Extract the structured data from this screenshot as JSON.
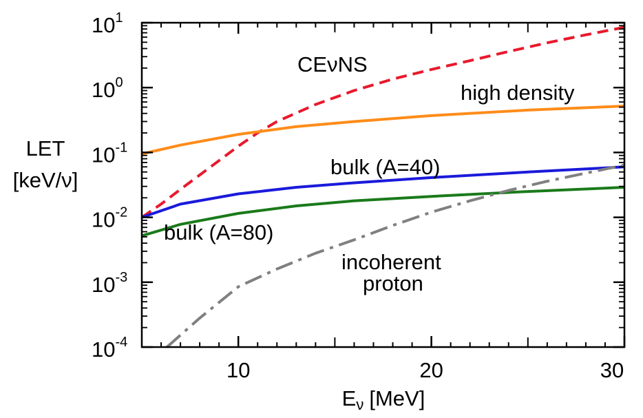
{
  "chart_data": {
    "type": "line",
    "xlabel": "E",
    "xlabel_sub": "ν",
    "xlabel_unit": "[MeV]",
    "ylabel_line1": "LET",
    "ylabel_line2": "[keV/ν]",
    "xlim": [
      5,
      30
    ],
    "ylim": [
      0.0001,
      10
    ],
    "yscale": "log",
    "grid": false,
    "x_ticks": [
      {
        "value": 10,
        "label": "10"
      },
      {
        "value": 20,
        "label": "20"
      },
      {
        "value": 30,
        "label": "30"
      }
    ],
    "y_ticks": [
      {
        "value": 0.0001,
        "base": "10",
        "exp": "-4"
      },
      {
        "value": 0.001,
        "base": "10",
        "exp": "-3"
      },
      {
        "value": 0.01,
        "base": "10",
        "exp": "-2"
      },
      {
        "value": 0.1,
        "base": "10",
        "exp": "-1"
      },
      {
        "value": 1,
        "base": "10",
        "exp": "0"
      },
      {
        "value": 10,
        "base": "10",
        "exp": "1"
      }
    ],
    "series": [
      {
        "name": "CEνNS",
        "color": "#e8192c",
        "dash": "dashed",
        "x": [
          5,
          6,
          7,
          8,
          9,
          10,
          11,
          12,
          14,
          16,
          18,
          20,
          22,
          24,
          26,
          28,
          30
        ],
        "y": [
          0.01,
          0.016,
          0.027,
          0.045,
          0.075,
          0.125,
          0.2,
          0.3,
          0.55,
          0.9,
          1.35,
          1.9,
          2.6,
          3.6,
          4.9,
          6.5,
          8.5
        ]
      },
      {
        "name": "high density",
        "color": "#ff8c1a",
        "dash": "solid",
        "x": [
          5,
          7,
          10,
          13,
          16,
          20,
          25,
          30
        ],
        "y": [
          0.095,
          0.13,
          0.19,
          0.25,
          0.3,
          0.37,
          0.45,
          0.52
        ]
      },
      {
        "name": "bulk (A=40)",
        "color": "#1a1adb",
        "dash": "solid",
        "x": [
          5,
          7,
          10,
          13,
          16,
          20,
          25,
          30
        ],
        "y": [
          0.01,
          0.016,
          0.023,
          0.029,
          0.034,
          0.041,
          0.05,
          0.06
        ]
      },
      {
        "name": "bulk (A=80)",
        "color": "#1a7a1a",
        "dash": "solid",
        "x": [
          5,
          7,
          10,
          13,
          16,
          20,
          25,
          30
        ],
        "y": [
          0.0052,
          0.0078,
          0.0115,
          0.015,
          0.018,
          0.021,
          0.025,
          0.029
        ]
      },
      {
        "name": "incoherent proton",
        "color": "#808080",
        "dash": "dashdot",
        "x": [
          6.3,
          8,
          10,
          12,
          14,
          16,
          18,
          20,
          22,
          24,
          26,
          28,
          30
        ],
        "y": [
          0.0001,
          0.00028,
          0.00085,
          0.0016,
          0.0028,
          0.0045,
          0.0075,
          0.012,
          0.018,
          0.026,
          0.036,
          0.048,
          0.064
        ]
      }
    ],
    "annotations": {
      "cevns": "CEνNS",
      "high_density": "high density",
      "bulk40": "bulk (A=40)",
      "bulk80": "bulk (A=80)",
      "incoherent_line1": "incoherent",
      "incoherent_line2": "proton"
    }
  }
}
